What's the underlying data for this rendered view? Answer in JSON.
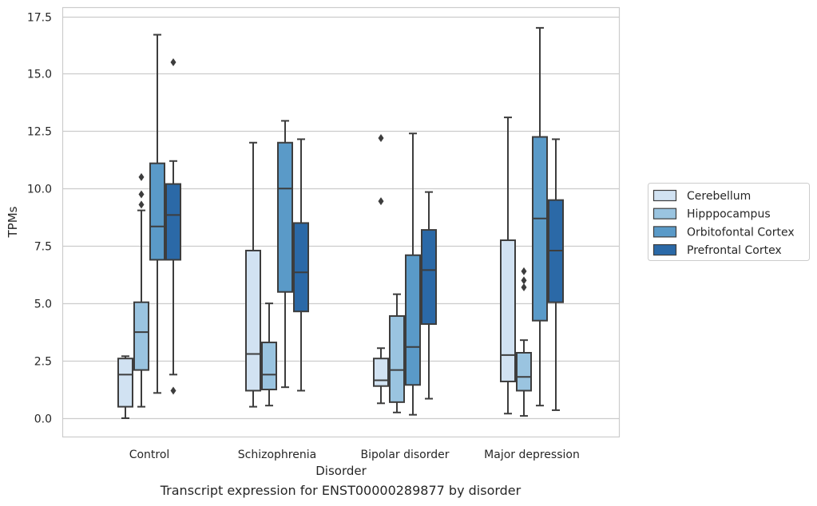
{
  "caption": "Transcript expression for ENST00000289877 by disorder",
  "chart_data": {
    "type": "box",
    "xlabel": "Disorder",
    "ylabel": "TPMs",
    "ylim": [
      -0.8,
      17.8
    ],
    "yticks": [
      "0.0",
      "2.5",
      "5.0",
      "7.5",
      "10.0",
      "12.5",
      "15.0",
      "17.5"
    ],
    "ytick_values": [
      0,
      2.5,
      5,
      7.5,
      10,
      12.5,
      15,
      17.5
    ],
    "grid": "horizontal",
    "legend_position": "right",
    "categories": [
      "Control",
      "Schizophrenia",
      "Bipolar disorder",
      "Major depression"
    ],
    "series": [
      {
        "name": "Cerebellum",
        "color": "#d1e2f2",
        "boxes": [
          {
            "whislo": 0.0,
            "q1": 0.5,
            "med": 1.9,
            "q3": 2.6,
            "whishi": 2.7,
            "fliers": []
          },
          {
            "whislo": 0.5,
            "q1": 1.2,
            "med": 2.8,
            "q3": 7.3,
            "whishi": 12.0,
            "fliers": []
          },
          {
            "whislo": 0.65,
            "q1": 1.4,
            "med": 1.65,
            "q3": 2.6,
            "whishi": 3.05,
            "fliers": [
              9.45,
              12.2
            ]
          },
          {
            "whislo": 0.2,
            "q1": 1.6,
            "med": 2.75,
            "q3": 7.75,
            "whishi": 13.1,
            "fliers": []
          }
        ]
      },
      {
        "name": "Hipppocampus",
        "color": "#9ac4e0",
        "boxes": [
          {
            "whislo": 0.5,
            "q1": 2.1,
            "med": 3.75,
            "q3": 5.05,
            "whishi": 9.05,
            "fliers": [
              9.3,
              9.75,
              10.5
            ]
          },
          {
            "whislo": 0.55,
            "q1": 1.25,
            "med": 1.9,
            "q3": 3.3,
            "whishi": 5.0,
            "fliers": []
          },
          {
            "whislo": 0.25,
            "q1": 0.7,
            "med": 2.1,
            "q3": 4.45,
            "whishi": 5.4,
            "fliers": []
          },
          {
            "whislo": 0.1,
            "q1": 1.2,
            "med": 1.8,
            "q3": 2.85,
            "whishi": 3.4,
            "fliers": [
              5.7,
              6.0,
              6.4
            ]
          }
        ]
      },
      {
        "name": "Orbitofontal Cortex",
        "color": "#5a9ac8",
        "boxes": [
          {
            "whislo": 1.1,
            "q1": 6.9,
            "med": 8.35,
            "q3": 11.1,
            "whishi": 16.7,
            "fliers": []
          },
          {
            "whislo": 1.35,
            "q1": 5.5,
            "med": 10.0,
            "q3": 12.0,
            "whishi": 12.95,
            "fliers": []
          },
          {
            "whislo": 0.15,
            "q1": 1.45,
            "med": 3.1,
            "q3": 7.1,
            "whishi": 12.4,
            "fliers": []
          },
          {
            "whislo": 0.55,
            "q1": 4.25,
            "med": 8.7,
            "q3": 12.25,
            "whishi": 17.0,
            "fliers": []
          }
        ]
      },
      {
        "name": "Prefrontal Cortex",
        "color": "#2b69a7",
        "boxes": [
          {
            "whislo": 1.9,
            "q1": 6.9,
            "med": 8.85,
            "q3": 10.2,
            "whishi": 11.2,
            "fliers": [
              1.2,
              15.5
            ]
          },
          {
            "whislo": 1.2,
            "q1": 4.65,
            "med": 6.35,
            "q3": 8.5,
            "whishi": 12.15,
            "fliers": []
          },
          {
            "whislo": 0.85,
            "q1": 4.1,
            "med": 6.45,
            "q3": 8.2,
            "whishi": 9.85,
            "fliers": []
          },
          {
            "whislo": 0.35,
            "q1": 5.05,
            "med": 7.3,
            "q3": 9.5,
            "whishi": 12.15,
            "fliers": []
          }
        ]
      }
    ]
  }
}
